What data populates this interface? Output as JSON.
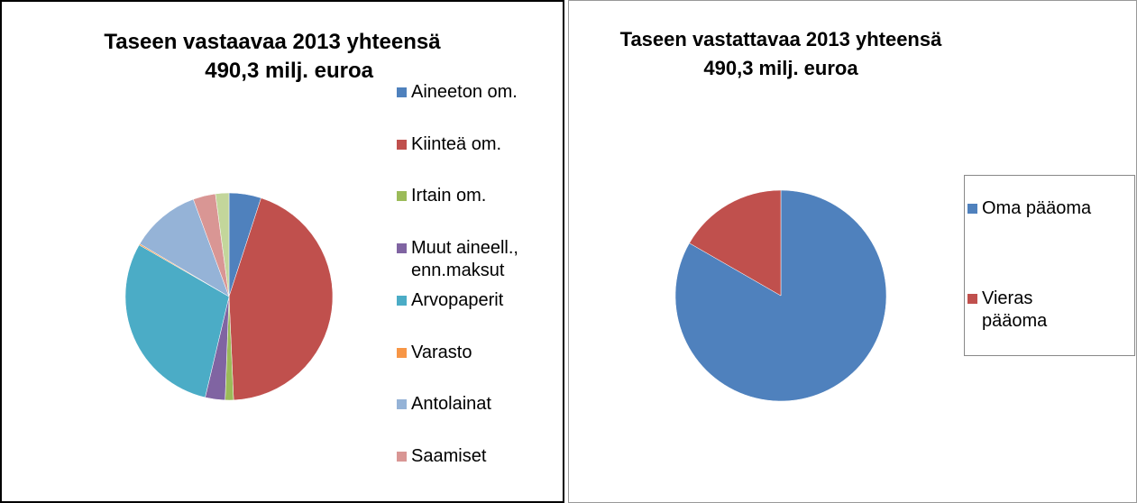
{
  "chart_data": [
    {
      "type": "pie",
      "title": [
        "Taseen vastaavaa  2013 yhteensä",
        "490,3 milj. euroa"
      ],
      "categories": [
        "Aineeton om.",
        "Kiinteä om.",
        "Irtain om.",
        "Muut aineell., enn.maksut",
        "Arvopaperit",
        "Varasto",
        "Antolainat",
        "Saamiset",
        null
      ],
      "values": [
        5,
        44.3,
        1.3,
        3.1,
        29.6,
        0.2,
        10.9,
        3.5,
        2.1
      ],
      "colors": [
        "#4f81bd",
        "#c0504d",
        "#9bbb59",
        "#8064a2",
        "#4bacc6",
        "#f79646",
        "#95b3d7",
        "#d99694",
        "#c3d69b"
      ],
      "legend": "right"
    },
    {
      "type": "pie",
      "title": [
        "Taseen vastattavaa 2013 yhteensä",
        "490,3 milj. euroa"
      ],
      "categories": [
        "Oma pääoma",
        "Vieras pääoma"
      ],
      "values": [
        83.3,
        16.7
      ],
      "colors": [
        "#4f81bd",
        "#c0504d"
      ],
      "legend": "right"
    }
  ]
}
